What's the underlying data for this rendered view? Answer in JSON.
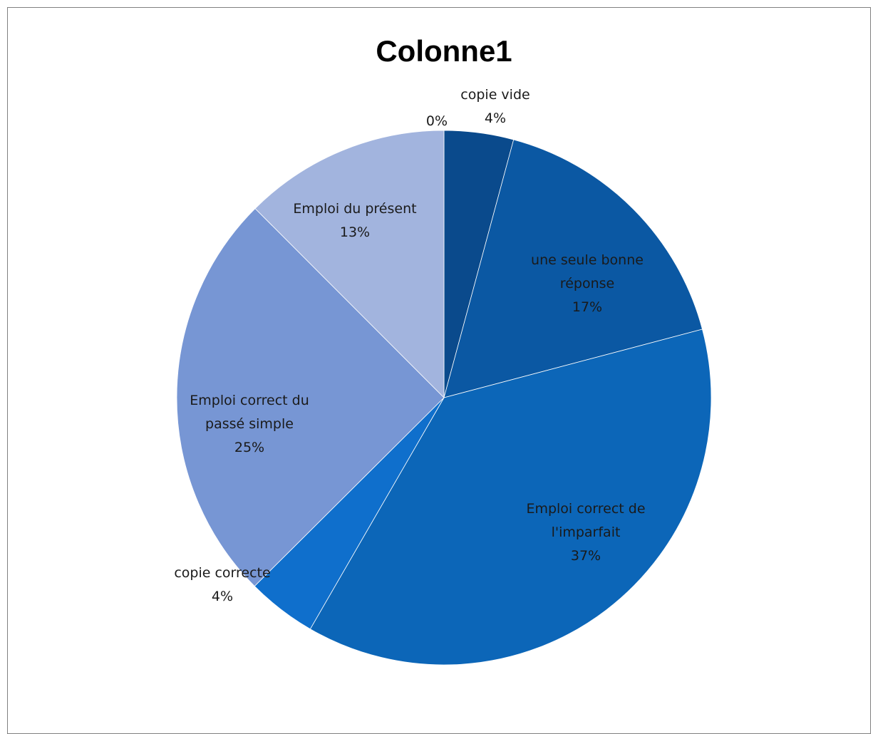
{
  "chart_data": {
    "type": "pie",
    "title": "Colonne1",
    "slices": [
      {
        "label": "",
        "percent_label": "0%",
        "value": 0.0,
        "color": "#0a4a8c"
      },
      {
        "label": "copie vide",
        "percent_label": "4%",
        "value": 4.2,
        "color": "#0a4a8c"
      },
      {
        "label": "une seule bonne réponse",
        "label_lines": [
          "une seule bonne",
          "réponse"
        ],
        "percent_label": "17%",
        "value": 16.7,
        "color": "#0b58a3"
      },
      {
        "label": "Emploi correct de l'imparfait",
        "label_lines": [
          "Emploi correct de",
          "l'imparfait"
        ],
        "percent_label": "37%",
        "value": 37.5,
        "color": "#0c66b8"
      },
      {
        "label": "copie correcte",
        "percent_label": "4%",
        "value": 4.2,
        "color": "#0f6fcc"
      },
      {
        "label": "Emploi correct du passé simple",
        "label_lines": [
          "Emploi correct du",
          "passé simple"
        ],
        "percent_label": "25%",
        "value": 25.0,
        "color": "#7796d4"
      },
      {
        "label": "Emploi du présent",
        "percent_label": "13%",
        "value": 12.5,
        "color": "#a2b4de"
      }
    ],
    "start_angle": "12 o'clock",
    "direction": "clockwise",
    "legend": "none",
    "labels": "data labels with category name and percentage"
  }
}
